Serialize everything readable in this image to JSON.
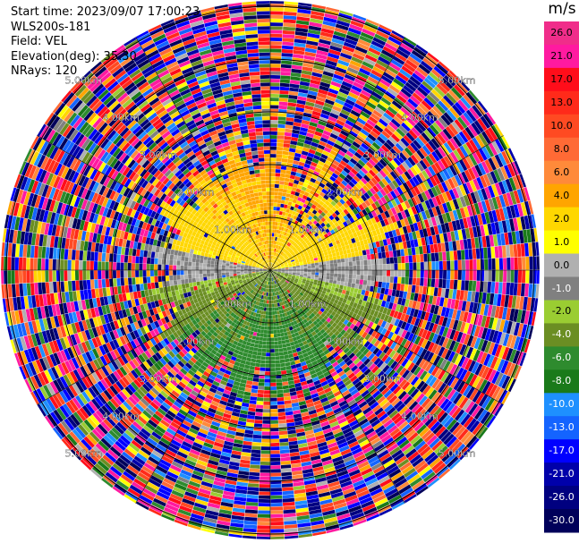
{
  "header": {
    "start_time": "Start time: 2023/09/07 17:00:23",
    "instrument": "WLS200s-181",
    "field": "Field: VEL",
    "elevation": "Elevation(deg): 35.30",
    "nrays": "NRays: 120"
  },
  "colorbar": {
    "unit": "m/s",
    "ticks": [
      "26.0",
      "21.0",
      "17.0",
      "13.0",
      "10.0",
      "8.0",
      "6.0",
      "4.0",
      "2.0",
      "1.0",
      "0.0",
      "-1.0",
      "-2.0",
      "-4.0",
      "-6.0",
      "-8.0",
      "-10.0",
      "-13.0",
      "-17.0",
      "-21.0",
      "-26.0",
      "-30.0"
    ],
    "colors": [
      "#f02d8a",
      "#ff1aa0",
      "#ff0d1a",
      "#ff2a1a",
      "#ff4a22",
      "#ff6a35",
      "#ff8a3a",
      "#ffa500",
      "#ffd700",
      "#ffff00",
      "#b0b0b0",
      "#808080",
      "#9acd32",
      "#6b8e23",
      "#2e8b2e",
      "#1a7a1a",
      "#1e90ff",
      "#1464ff",
      "#0000ff",
      "#0000aa",
      "#000080",
      "#00005a"
    ]
  },
  "chart_data": {
    "type": "ppi",
    "field": "VEL",
    "unit": "m/s",
    "nrays": 120,
    "elevation_deg": 35.3,
    "range_ring_labels": [
      "1.00km",
      "2.00km",
      "3.00km",
      "4.00km",
      "5.00km"
    ],
    "range_rings_km": [
      1,
      2,
      3,
      4,
      5
    ],
    "max_range_km": 5.1,
    "observations": [
      {
        "region": "north sector, 1-2.5 km",
        "velocity_ms": [
          1.0,
          4.0
        ]
      },
      {
        "region": "east and west sides, 0-1.5 km",
        "velocity_ms": [
          -1.0,
          1.0
        ]
      },
      {
        "region": "south sector, 0-2.5 km",
        "velocity_ms": [
          -6.0,
          -1.0
        ]
      },
      {
        "region": "beyond 2.5 km",
        "velocity_ms": [
          -30.0,
          26.0
        ],
        "note": "noise"
      }
    ],
    "colorbar_ticks": [
      26.0,
      21.0,
      17.0,
      13.0,
      10.0,
      8.0,
      6.0,
      4.0,
      2.0,
      1.0,
      0.0,
      -1.0,
      -2.0,
      -4.0,
      -6.0,
      -8.0,
      -10.0,
      -13.0,
      -17.0,
      -21.0,
      -26.0,
      -30.0
    ]
  }
}
